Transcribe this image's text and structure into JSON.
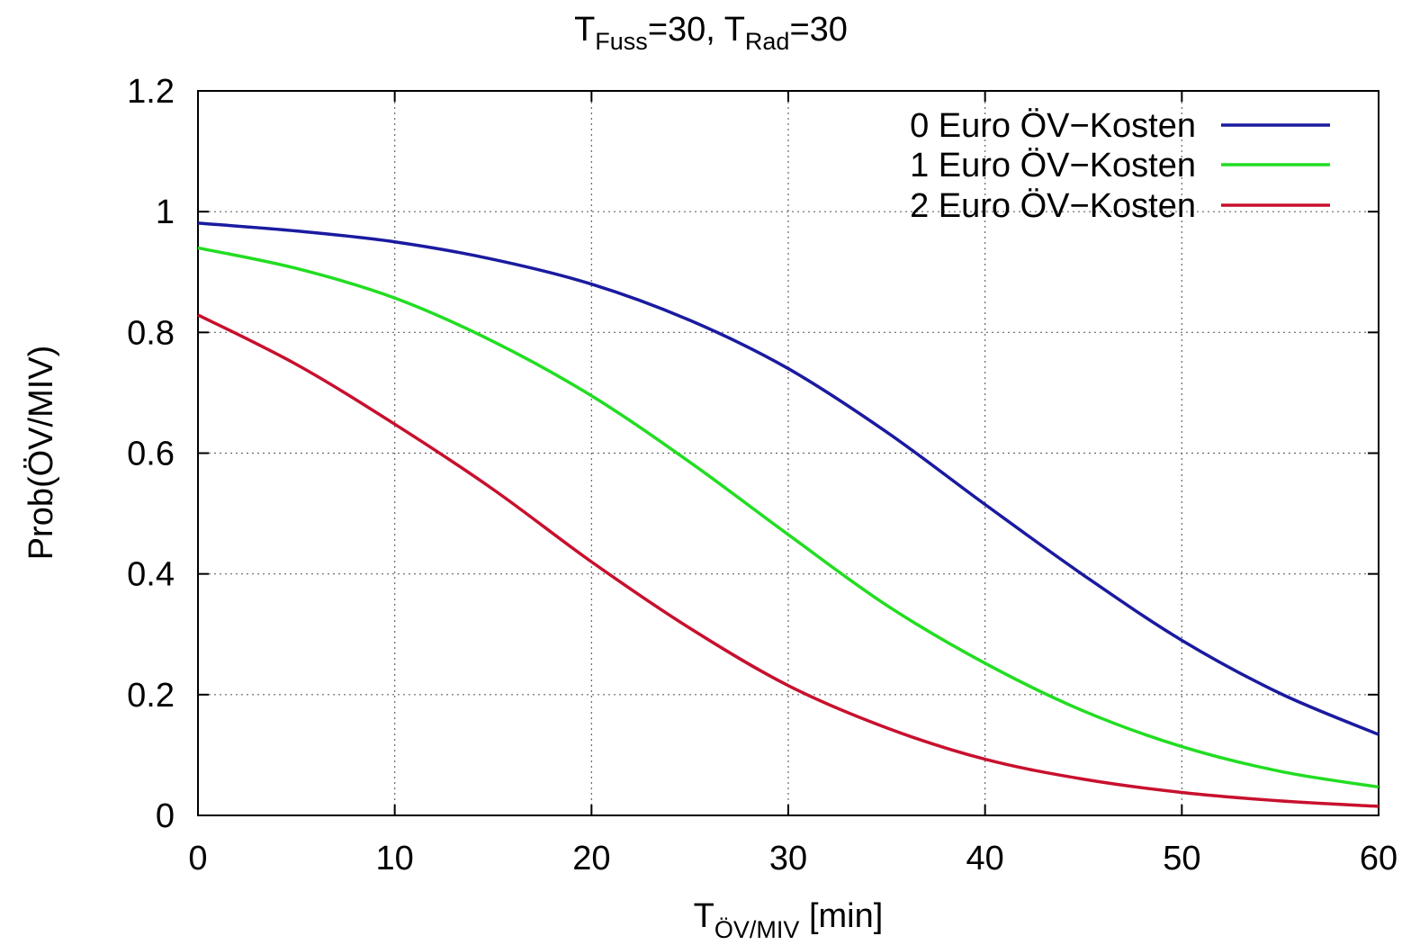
{
  "chart_data": {
    "type": "line",
    "title": {
      "base1": "T",
      "sub1": "Fuss",
      "mid": "=30, T",
      "sub2": "Rad",
      "tail": "=30"
    },
    "xlabel": {
      "base": "T",
      "sub": "ÖV/MIV",
      "tail": " [min]"
    },
    "ylabel": "Prob(ÖV/MIV)",
    "xlim": [
      0,
      60
    ],
    "ylim": [
      0,
      1.2
    ],
    "xticks": [
      0,
      10,
      20,
      30,
      40,
      50,
      60
    ],
    "xtick_labels": [
      "0",
      "10",
      "20",
      "30",
      "40",
      "50",
      "60"
    ],
    "yticks": [
      0,
      0.2,
      0.4,
      0.6,
      0.8,
      1,
      1.2
    ],
    "ytick_labels": [
      "0",
      "0.2",
      "0.4",
      "0.6",
      "0.8",
      "1",
      "1.2"
    ],
    "grid": true,
    "legend_position": "top-right",
    "x": [
      0,
      5,
      10,
      15,
      20,
      25,
      30,
      35,
      40,
      45,
      50,
      55,
      60
    ],
    "series": [
      {
        "name": "0 Euro ÖV−Kosten",
        "color": "#1a1aa0",
        "values": [
          0.981,
          0.968,
          0.95,
          0.921,
          0.88,
          0.82,
          0.74,
          0.635,
          0.515,
          0.398,
          0.29,
          0.202,
          0.134
        ]
      },
      {
        "name": "1 Euro ÖV−Kosten",
        "color": "#22dd22",
        "values": [
          0.94,
          0.906,
          0.857,
          0.785,
          0.695,
          0.585,
          0.465,
          0.348,
          0.252,
          0.173,
          0.114,
          0.073,
          0.047
        ]
      },
      {
        "name": "2 Euro ÖV−Kosten",
        "color": "#c8102e",
        "values": [
          0.829,
          0.747,
          0.648,
          0.54,
          0.42,
          0.31,
          0.215,
          0.145,
          0.093,
          0.06,
          0.038,
          0.024,
          0.015
        ]
      }
    ]
  }
}
